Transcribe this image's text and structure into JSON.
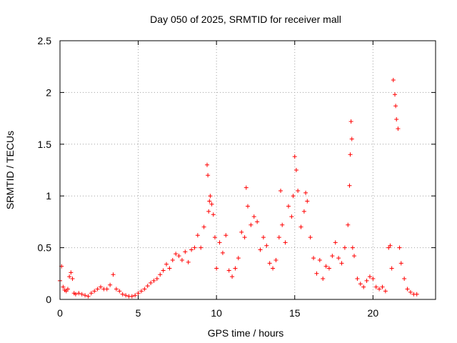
{
  "chart_data": {
    "type": "scatter",
    "title": "Day 050 of 2025, SRMTID for receiver mall",
    "xlabel": "GPS time / hours",
    "ylabel": "SRMTID / TECUs",
    "xlim": [
      0,
      24
    ],
    "ylim": [
      0,
      2.5
    ],
    "xticks": [
      0,
      5,
      10,
      15,
      20
    ],
    "xtick_labels": [
      "0",
      "5",
      "10",
      "15",
      "20"
    ],
    "yticks": [
      0,
      0.5,
      1,
      1.5,
      2,
      2.5
    ],
    "ytick_labels": [
      "0",
      "0.5",
      "1",
      "1.5",
      "2",
      "2.5"
    ],
    "grid": true,
    "marker": "+",
    "color": "#ff0000",
    "series": [
      {
        "name": "SRMTID",
        "x": [
          0.0,
          0.1,
          0.2,
          0.3,
          0.4,
          0.5,
          0.6,
          0.7,
          0.8,
          0.9,
          1.0,
          1.2,
          1.4,
          1.6,
          1.8,
          2.0,
          2.2,
          2.4,
          2.6,
          2.8,
          3.0,
          3.2,
          3.4,
          3.6,
          3.8,
          4.0,
          4.2,
          4.4,
          4.6,
          4.8,
          5.0,
          5.2,
          5.4,
          5.6,
          5.8,
          6.0,
          6.2,
          6.4,
          6.6,
          6.8,
          7.0,
          7.2,
          7.4,
          7.6,
          7.8,
          8.0,
          8.2,
          8.4,
          8.6,
          8.8,
          9.0,
          9.2,
          9.4,
          9.45,
          9.5,
          9.55,
          9.6,
          9.7,
          9.8,
          9.9,
          10.0,
          10.2,
          10.4,
          10.6,
          10.8,
          11.0,
          11.2,
          11.4,
          11.6,
          11.8,
          11.9,
          12.0,
          12.2,
          12.4,
          12.6,
          12.8,
          13.0,
          13.2,
          13.4,
          13.6,
          13.8,
          14.0,
          14.1,
          14.2,
          14.4,
          14.6,
          14.8,
          14.9,
          15.0,
          15.1,
          15.2,
          15.4,
          15.6,
          15.7,
          15.8,
          16.0,
          16.2,
          16.4,
          16.6,
          16.8,
          17.0,
          17.2,
          17.4,
          17.6,
          17.8,
          18.0,
          18.2,
          18.4,
          18.5,
          18.55,
          18.6,
          18.65,
          18.7,
          18.8,
          19.0,
          19.2,
          19.4,
          19.6,
          19.8,
          20.0,
          20.2,
          20.4,
          20.6,
          20.8,
          21.0,
          21.1,
          21.2,
          21.3,
          21.4,
          21.45,
          21.5,
          21.6,
          21.7,
          21.8,
          22.0,
          22.2,
          22.4,
          22.6,
          22.8
        ],
        "values": [
          0.18,
          0.32,
          0.12,
          0.09,
          0.08,
          0.1,
          0.22,
          0.26,
          0.2,
          0.06,
          0.05,
          0.06,
          0.05,
          0.04,
          0.03,
          0.06,
          0.08,
          0.1,
          0.12,
          0.1,
          0.1,
          0.14,
          0.24,
          0.1,
          0.08,
          0.05,
          0.04,
          0.03,
          0.03,
          0.04,
          0.06,
          0.08,
          0.1,
          0.13,
          0.16,
          0.18,
          0.2,
          0.24,
          0.28,
          0.34,
          0.3,
          0.38,
          0.44,
          0.42,
          0.38,
          0.46,
          0.36,
          0.48,
          0.5,
          0.62,
          0.5,
          0.7,
          1.3,
          1.2,
          0.85,
          0.95,
          1.0,
          0.92,
          0.82,
          0.6,
          0.3,
          0.55,
          0.45,
          0.62,
          0.28,
          0.22,
          0.3,
          0.4,
          0.65,
          0.6,
          1.08,
          0.9,
          0.72,
          0.8,
          0.75,
          0.48,
          0.6,
          0.52,
          0.35,
          0.3,
          0.38,
          0.6,
          1.05,
          0.72,
          0.55,
          0.9,
          0.8,
          1.0,
          1.38,
          1.25,
          1.05,
          0.7,
          0.85,
          1.03,
          0.95,
          0.6,
          0.4,
          0.25,
          0.38,
          0.2,
          0.32,
          0.3,
          0.42,
          0.55,
          0.4,
          0.35,
          0.5,
          0.72,
          1.1,
          1.4,
          1.72,
          1.55,
          0.5,
          0.42,
          0.2,
          0.15,
          0.12,
          0.18,
          0.22,
          0.2,
          0.12,
          0.1,
          0.12,
          0.08,
          0.5,
          0.52,
          0.3,
          2.12,
          1.98,
          1.87,
          1.74,
          1.65,
          0.5,
          0.35,
          0.2,
          0.1,
          0.07,
          0.05,
          0.05
        ]
      }
    ]
  }
}
